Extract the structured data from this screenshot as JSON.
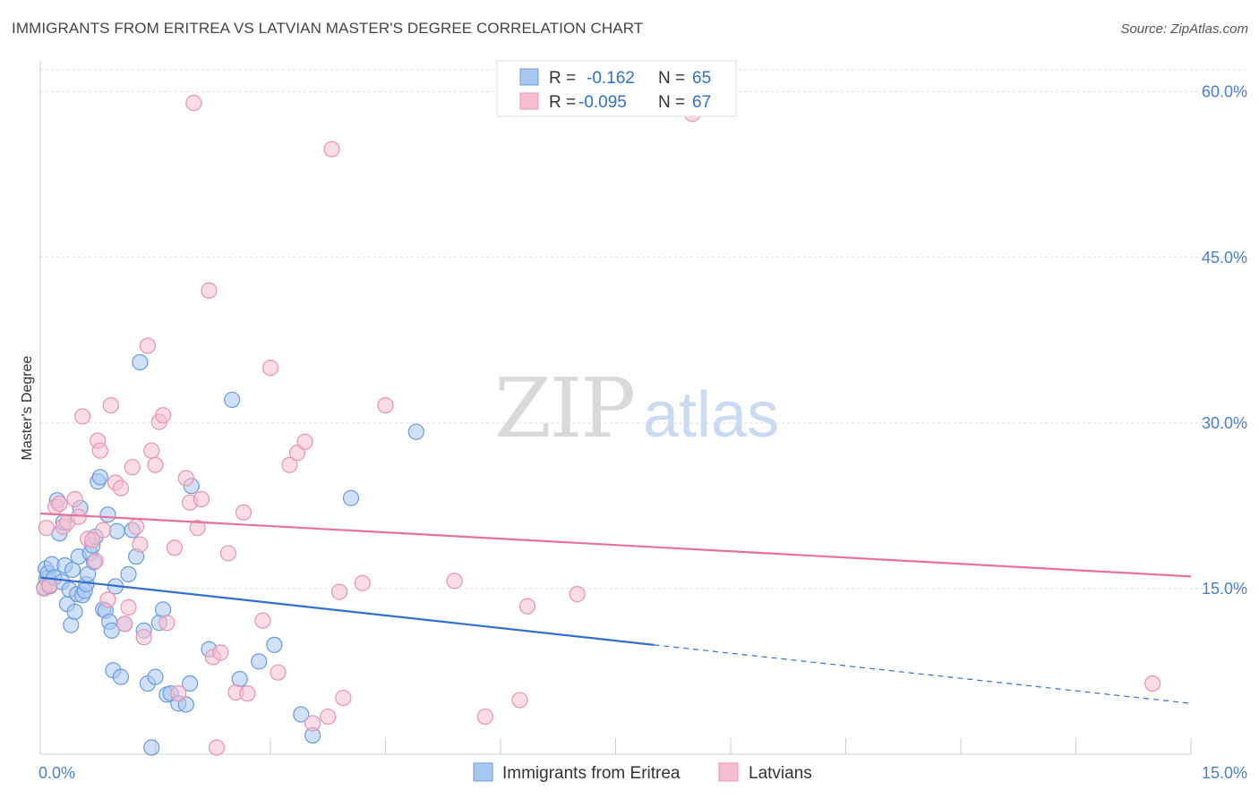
{
  "title": "IMMIGRANTS FROM ERITREA VS LATVIAN MASTER'S DEGREE CORRELATION CHART",
  "source": "Source: ZipAtlas.com",
  "watermark": {
    "zip": "ZIP",
    "atlas": "atlas"
  },
  "colors": {
    "blue_fill": "#a9c8f0",
    "blue_stroke": "#6a9be0",
    "blue_line": "#2f6fd1",
    "pink_fill": "#f6bfd0",
    "pink_stroke": "#ec93b1",
    "pink_line": "#e8719a",
    "grid": "#dddddd",
    "tick_text": "#4a7fd4"
  },
  "legend": {
    "rows": [
      {
        "r_label": "R =",
        "r_value": "-0.162",
        "n_label": "N =",
        "n_value": "65",
        "series": "blue"
      },
      {
        "r_label": "R =",
        "r_value": "-0.095",
        "n_label": "N =",
        "n_value": "67",
        "series": "pink"
      }
    ]
  },
  "chart_data": {
    "type": "scatter",
    "title": "IMMIGRANTS FROM ERITREA VS LATVIAN MASTER'S DEGREE CORRELATION CHART",
    "xlabel": "",
    "ylabel": "Master's Degree",
    "xlim": [
      0,
      15
    ],
    "ylim": [
      0,
      62
    ],
    "x_tick_labels": [
      {
        "value": 0,
        "label": "0.0%"
      },
      {
        "value": 15,
        "label": "15.0%"
      }
    ],
    "y_tick_labels": [
      {
        "value": 15,
        "label": "15.0%"
      },
      {
        "value": 30,
        "label": "30.0%"
      },
      {
        "value": 45,
        "label": "45.0%"
      },
      {
        "value": 60,
        "label": "60.0%"
      }
    ],
    "legend_position": "top-center",
    "series": [
      {
        "name": "Immigrants from Eritrea",
        "color": "blue",
        "trend": {
          "x0": 0,
          "y0": 16.0,
          "x1": 8.0,
          "y1": 9.9,
          "dash_x1": 15.0,
          "dash_y1": 4.6
        },
        "points": [
          [
            0.05,
            15.1
          ],
          [
            0.07,
            16.8
          ],
          [
            0.08,
            15.9
          ],
          [
            0.1,
            16.4
          ],
          [
            0.12,
            15.2
          ],
          [
            0.15,
            17.2
          ],
          [
            0.18,
            16.0
          ],
          [
            0.22,
            23.0
          ],
          [
            0.25,
            20.0
          ],
          [
            0.28,
            15.6
          ],
          [
            0.3,
            21.0
          ],
          [
            0.32,
            17.1
          ],
          [
            0.35,
            13.6
          ],
          [
            0.38,
            14.9
          ],
          [
            0.4,
            11.7
          ],
          [
            0.42,
            16.7
          ],
          [
            0.45,
            12.9
          ],
          [
            0.48,
            14.5
          ],
          [
            0.5,
            17.9
          ],
          [
            0.52,
            22.3
          ],
          [
            0.55,
            14.4
          ],
          [
            0.58,
            14.8
          ],
          [
            0.6,
            15.4
          ],
          [
            0.62,
            16.3
          ],
          [
            0.65,
            18.2
          ],
          [
            0.68,
            18.9
          ],
          [
            0.7,
            17.4
          ],
          [
            0.72,
            19.7
          ],
          [
            0.75,
            24.7
          ],
          [
            0.78,
            25.1
          ],
          [
            0.82,
            13.1
          ],
          [
            0.85,
            13.0
          ],
          [
            0.88,
            21.7
          ],
          [
            0.9,
            12.0
          ],
          [
            0.93,
            11.2
          ],
          [
            0.95,
            7.6
          ],
          [
            0.98,
            15.2
          ],
          [
            1.0,
            20.2
          ],
          [
            1.05,
            7.0
          ],
          [
            1.1,
            11.8
          ],
          [
            1.15,
            16.3
          ],
          [
            1.2,
            20.3
          ],
          [
            1.25,
            17.9
          ],
          [
            1.3,
            35.5
          ],
          [
            1.35,
            11.2
          ],
          [
            1.4,
            6.4
          ],
          [
            1.45,
            0.6
          ],
          [
            1.5,
            7.0
          ],
          [
            1.55,
            11.9
          ],
          [
            1.6,
            13.1
          ],
          [
            1.65,
            5.4
          ],
          [
            1.7,
            5.5
          ],
          [
            1.8,
            4.6
          ],
          [
            1.9,
            4.5
          ],
          [
            1.95,
            6.4
          ],
          [
            1.97,
            24.3
          ],
          [
            2.2,
            9.5
          ],
          [
            2.5,
            32.1
          ],
          [
            2.6,
            6.8
          ],
          [
            2.85,
            8.4
          ],
          [
            3.05,
            9.9
          ],
          [
            3.4,
            3.6
          ],
          [
            3.55,
            1.7
          ],
          [
            4.05,
            23.2
          ],
          [
            4.9,
            29.2
          ]
        ]
      },
      {
        "name": "Latvians",
        "color": "pink",
        "trend": {
          "x0": 0,
          "y0": 21.8,
          "x1": 15.0,
          "y1": 16.1
        },
        "points": [
          [
            0.05,
            15.0
          ],
          [
            0.08,
            20.5
          ],
          [
            0.12,
            15.3
          ],
          [
            0.2,
            22.4
          ],
          [
            0.25,
            22.7
          ],
          [
            0.3,
            20.6
          ],
          [
            0.35,
            21.0
          ],
          [
            0.45,
            23.1
          ],
          [
            0.5,
            21.5
          ],
          [
            0.55,
            30.6
          ],
          [
            0.62,
            19.5
          ],
          [
            0.68,
            19.4
          ],
          [
            0.72,
            17.5
          ],
          [
            0.75,
            28.4
          ],
          [
            0.78,
            27.5
          ],
          [
            0.82,
            20.3
          ],
          [
            0.88,
            14.0
          ],
          [
            0.92,
            31.6
          ],
          [
            0.98,
            24.6
          ],
          [
            1.05,
            24.1
          ],
          [
            1.1,
            11.8
          ],
          [
            1.15,
            13.3
          ],
          [
            1.2,
            26.0
          ],
          [
            1.25,
            20.6
          ],
          [
            1.3,
            19.0
          ],
          [
            1.35,
            10.6
          ],
          [
            1.4,
            37.0
          ],
          [
            1.45,
            27.5
          ],
          [
            1.5,
            26.2
          ],
          [
            1.55,
            30.1
          ],
          [
            1.6,
            30.7
          ],
          [
            1.65,
            11.9
          ],
          [
            1.75,
            18.7
          ],
          [
            1.8,
            5.5
          ],
          [
            1.9,
            25.0
          ],
          [
            1.95,
            22.8
          ],
          [
            2.05,
            20.5
          ],
          [
            2.1,
            23.1
          ],
          [
            2.2,
            42.0
          ],
          [
            2.25,
            8.8
          ],
          [
            2.3,
            0.6
          ],
          [
            2.35,
            9.2
          ],
          [
            2.45,
            18.2
          ],
          [
            2.55,
            5.6
          ],
          [
            2.65,
            21.9
          ],
          [
            2.7,
            5.5
          ],
          [
            2.9,
            12.1
          ],
          [
            3.0,
            35.0
          ],
          [
            3.1,
            7.4
          ],
          [
            3.25,
            26.2
          ],
          [
            3.35,
            27.3
          ],
          [
            3.45,
            28.3
          ],
          [
            3.55,
            2.8
          ],
          [
            3.75,
            3.4
          ],
          [
            3.8,
            54.8
          ],
          [
            3.9,
            14.7
          ],
          [
            3.95,
            5.1
          ],
          [
            4.2,
            15.5
          ],
          [
            4.5,
            31.6
          ],
          [
            5.4,
            15.7
          ],
          [
            5.8,
            3.4
          ],
          [
            6.25,
            4.9
          ],
          [
            6.35,
            13.4
          ],
          [
            2.0,
            59.0
          ],
          [
            7.0,
            14.5
          ],
          [
            8.5,
            58.0
          ],
          [
            14.5,
            6.4
          ]
        ]
      }
    ]
  },
  "bottom_legend": [
    {
      "label": "Immigrants from Eritrea",
      "series": "blue"
    },
    {
      "label": "Latvians",
      "series": "pink"
    }
  ]
}
